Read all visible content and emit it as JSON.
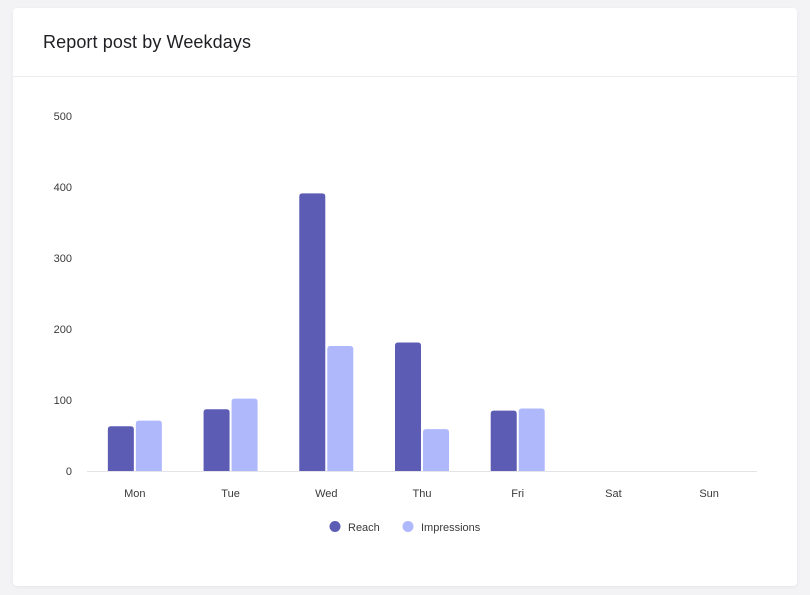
{
  "card": {
    "title": "Report post by Weekdays"
  },
  "colors": {
    "reach": "#5c5cb5",
    "impressions": "#aeb8fb",
    "baseline": "#e3e3e8"
  },
  "chart_data": {
    "type": "bar",
    "categories": [
      "Mon",
      "Tue",
      "Wed",
      "Thu",
      "Fri",
      "Sat",
      "Sun"
    ],
    "series": [
      {
        "name": "Reach",
        "values": [
          63,
          87,
          391,
          181,
          85,
          0,
          0
        ]
      },
      {
        "name": "Impressions",
        "values": [
          71,
          102,
          176,
          59,
          88,
          0,
          0
        ]
      }
    ],
    "yticks": [
      "0",
      "100",
      "200",
      "300",
      "400",
      "500"
    ],
    "ylim": [
      0,
      500
    ],
    "legend": "bottom",
    "grid": false
  }
}
